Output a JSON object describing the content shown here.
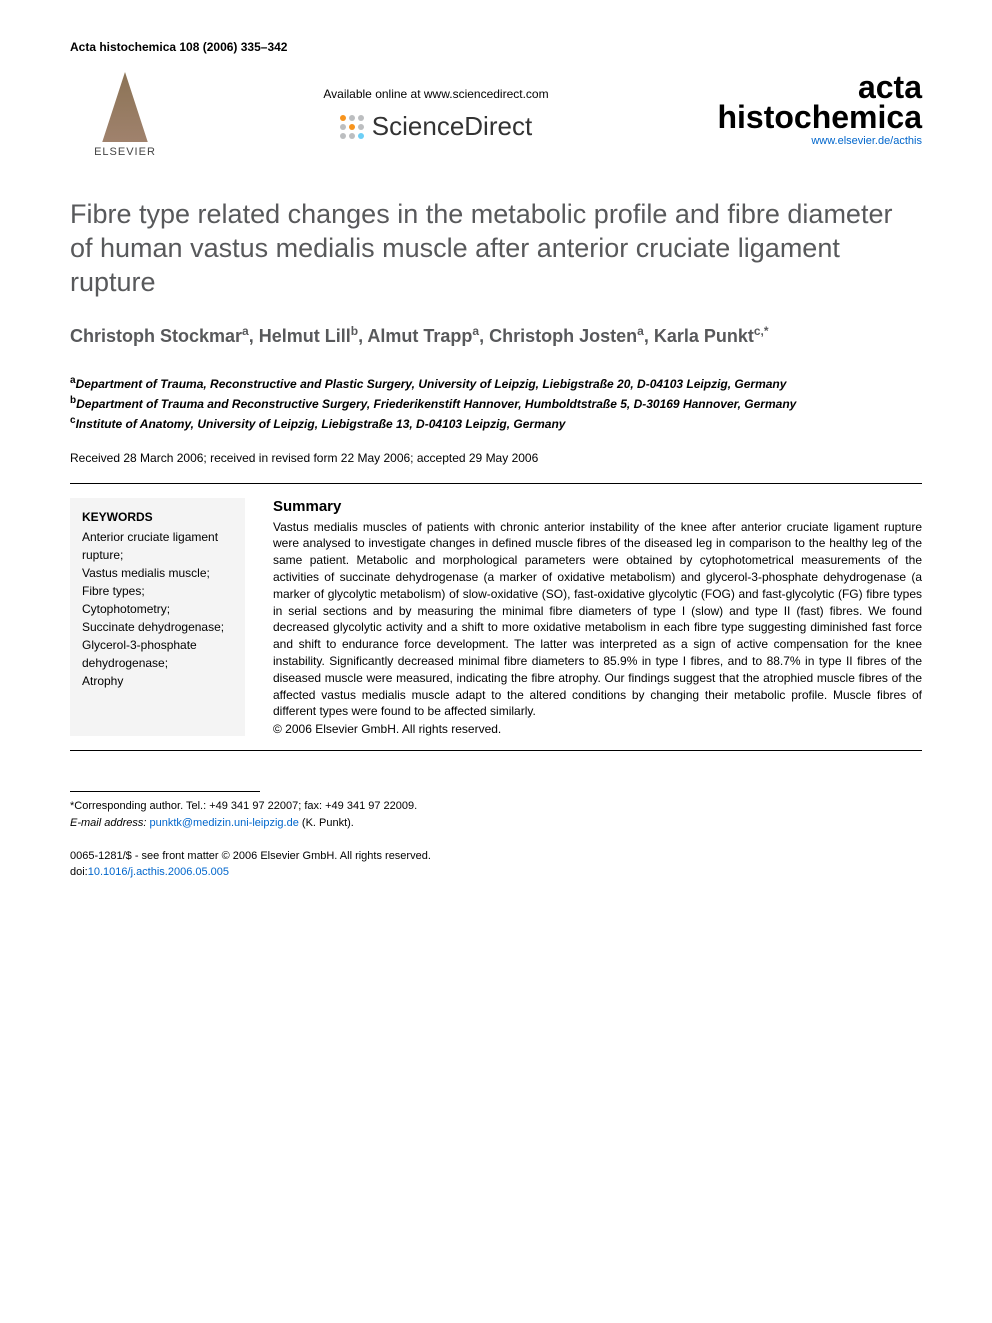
{
  "header": {
    "citation": "Acta histochemica 108 (2006) 335–342",
    "elsevier_label": "ELSEVIER",
    "available_text": "Available online at www.sciencedirect.com",
    "sciencedirect": "ScienceDirect",
    "journal_name_line1": "acta",
    "journal_name_line2": "histochemica",
    "journal_url": "www.elsevier.de/acthis",
    "sd_dot_colors": [
      "#f7941d",
      "#bcbec0",
      "#bcbec0",
      "#bcbec0",
      "#f7941d",
      "#bcbec0",
      "#bcbec0",
      "#bcbec0",
      "#6dcff6"
    ]
  },
  "article": {
    "title": "Fibre type related changes in the metabolic profile and fibre diameter of human vastus medialis muscle after anterior cruciate ligament rupture",
    "authors_html": "Christoph Stockmar<sup>a</sup>, Helmut Lill<sup>b</sup>, Almut Trapp<sup>a</sup>, Christoph Josten<sup>a</sup>, Karla Punkt<sup>c,*</sup>",
    "affiliations": [
      {
        "marker": "a",
        "text": "Department of Trauma, Reconstructive and Plastic Surgery, University of Leipzig, Liebigstraße 20, D-04103 Leipzig, Germany"
      },
      {
        "marker": "b",
        "text": "Department of Trauma and Reconstructive Surgery, Friederikenstift Hannover, Humboldtstraße 5, D-30169 Hannover, Germany"
      },
      {
        "marker": "c",
        "text": "Institute of Anatomy, University of Leipzig, Liebigstraße 13, D-04103 Leipzig, Germany"
      }
    ],
    "dates": "Received 28 March 2006; received in revised form 22 May 2006; accepted 29 May 2006"
  },
  "keywords": {
    "heading": "KEYWORDS",
    "items": "Anterior cruciate ligament rupture;\nVastus medialis muscle;\nFibre types;\nCytophotometry;\nSuccinate dehydrogenase;\nGlycerol-3-phosphate dehydrogenase;\nAtrophy"
  },
  "summary": {
    "heading": "Summary",
    "text": "Vastus medialis muscles of patients with chronic anterior instability of the knee after anterior cruciate ligament rupture were analysed to investigate changes in defined muscle fibres of the diseased leg in comparison to the healthy leg of the same patient. Metabolic and morphological parameters were obtained by cytophotometrical measurements of the activities of succinate dehydrogenase (a marker of oxidative metabolism) and glycerol-3-phosphate dehydrogenase (a marker of glycolytic metabolism) of slow-oxidative (SO), fast-oxidative glycolytic (FOG) and fast-glycolytic (FG) fibre types in serial sections and by measuring the minimal fibre diameters of type I (slow) and type II (fast) fibres. We found decreased glycolytic activity and a shift to more oxidative metabolism in each fibre type suggesting diminished fast force and shift to endurance force development. The latter was interpreted as a sign of active compensation for the knee instability. Significantly decreased minimal fibre diameters to 85.9% in type I fibres, and to 88.7% in type II fibres of the diseased muscle were measured, indicating the fibre atrophy. Our findings suggest that the atrophied muscle fibres of the affected vastus medialis muscle adapt to the altered conditions by changing their metabolic profile. Muscle fibres of different types were found to be affected similarly.",
    "copyright": "© 2006 Elsevier GmbH. All rights reserved."
  },
  "footer": {
    "corresponding": "*Corresponding author. Tel.: +49 341 97 22007; fax: +49 341 97 22009.",
    "email_label": "E-mail address:",
    "email": "punktk@medizin.uni-leipzig.de",
    "email_attribution": "(K. Punkt).",
    "issn_line": "0065-1281/$ - see front matter © 2006 Elsevier GmbH. All rights reserved.",
    "doi_label": "doi:",
    "doi": "10.1016/j.acthis.2006.05.005"
  }
}
